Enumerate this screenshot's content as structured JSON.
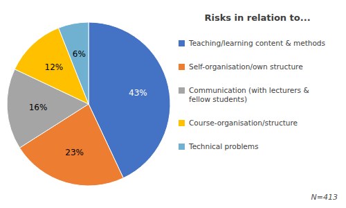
{
  "chart_data": {
    "type": "pie",
    "title": "Risks in relation to...",
    "categories": [
      "Teaching/learning content & methods",
      "Self-organisation/own structure",
      "Communication (with lecturers &\nfellow students)",
      "Course-organisation/structure",
      "Technical problems"
    ],
    "values": [
      43,
      23,
      16,
      12,
      6
    ],
    "value_labels": [
      "43%",
      "23%",
      "16%",
      "12%",
      "6%"
    ],
    "colors": [
      "#4472C4",
      "#ED7D31",
      "#A5A5A5",
      "#FFC000",
      "#70B0D0"
    ],
    "data_labels": true,
    "legend": "right",
    "annotations": [
      "N=413"
    ]
  }
}
